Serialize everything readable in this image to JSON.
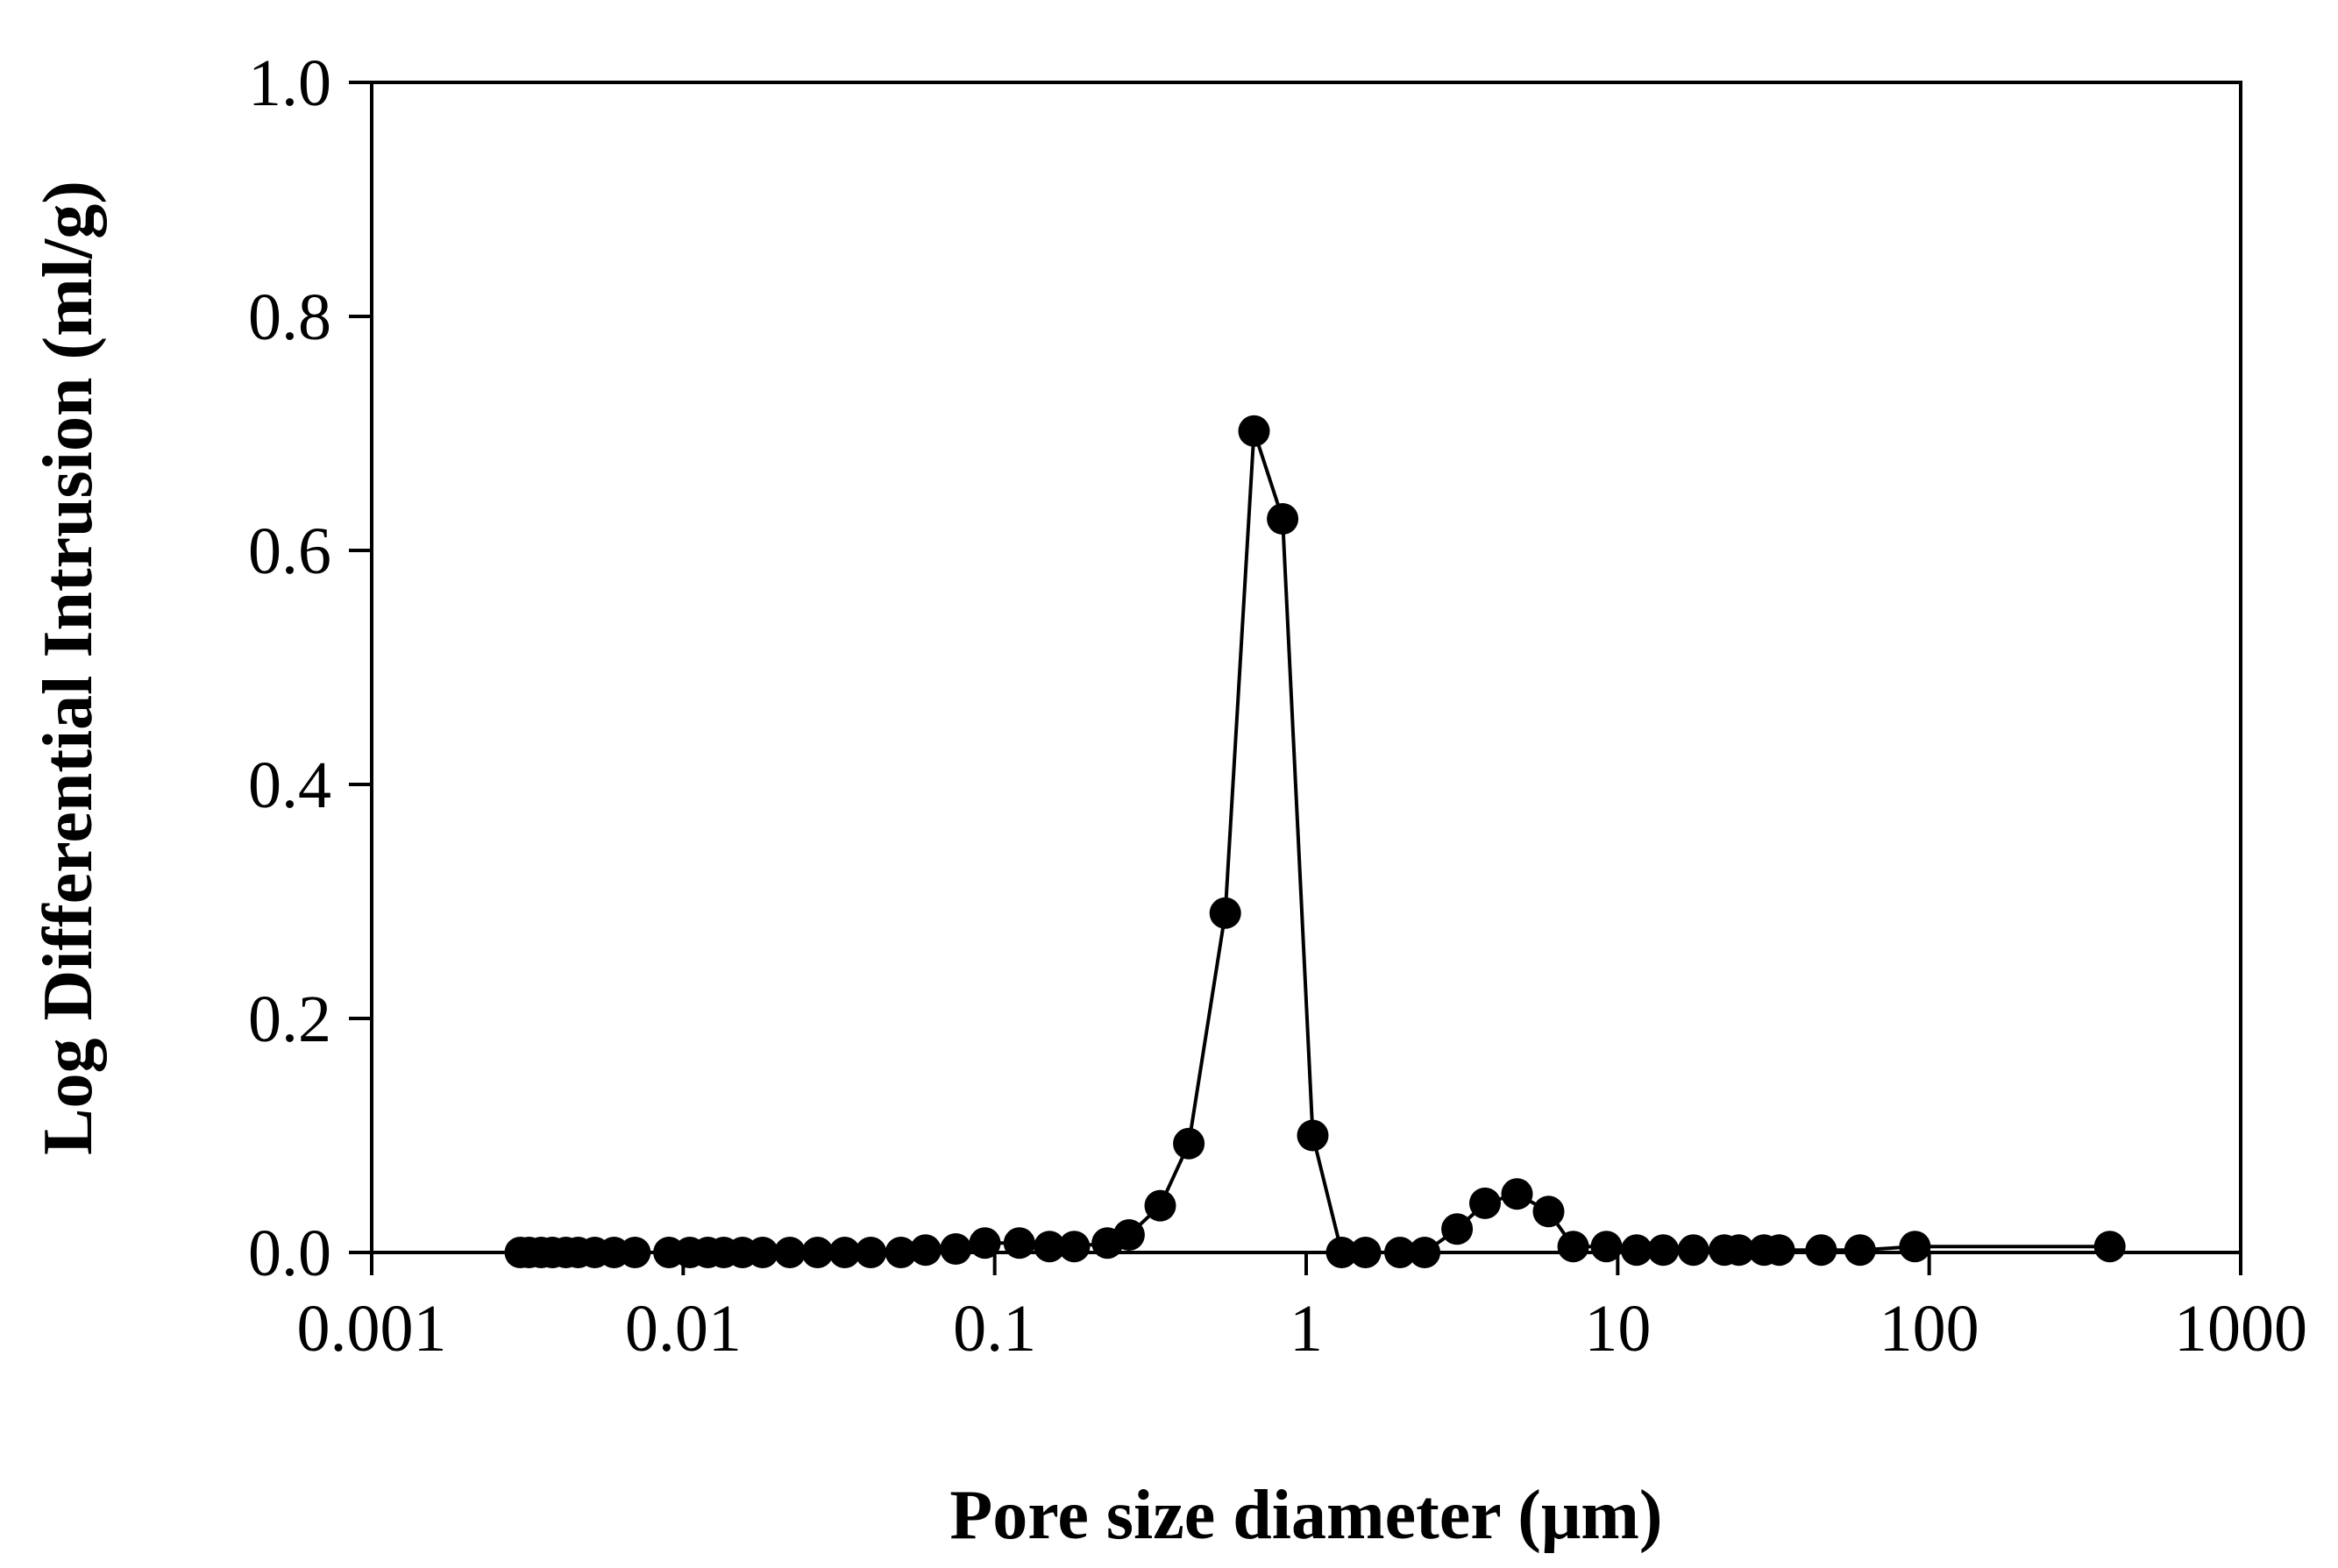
{
  "chart_data": {
    "type": "scatter",
    "title": "",
    "xlabel": "Pore size diameter (μm)",
    "ylabel": "Log Differential Intrusion (ml/g)",
    "x_scale": "log",
    "xlim": [
      0.001,
      1000
    ],
    "ylim": [
      0,
      1.0
    ],
    "x_ticks": [
      0.001,
      0.01,
      0.1,
      1,
      10,
      100,
      1000
    ],
    "x_tick_labels": [
      "0.001",
      "0.01",
      "0.1",
      "1",
      "10",
      "100",
      "1000"
    ],
    "y_ticks": [
      0,
      0.2,
      0.4,
      0.6,
      0.8,
      1.0
    ],
    "y_tick_labels": [
      "0.0",
      "0.2",
      "0.4",
      "0.6",
      "0.8",
      "1.0"
    ],
    "grid": false,
    "legend": "none",
    "colors": {
      "series": "#000000",
      "axis": "#000000"
    },
    "series": [
      {
        "marker": "filled-circle",
        "line": true,
        "x": [
          0.003,
          0.0032,
          0.0035,
          0.0038,
          0.0042,
          0.0046,
          0.0052,
          0.006,
          0.007,
          0.009,
          0.0105,
          0.012,
          0.0135,
          0.0155,
          0.018,
          0.022,
          0.027,
          0.033,
          0.04,
          0.05,
          0.06,
          0.075,
          0.093,
          0.12,
          0.15,
          0.18,
          0.23,
          0.27,
          0.34,
          0.42,
          0.55,
          0.68,
          0.84,
          1.05,
          1.3,
          1.55,
          2.0,
          2.4,
          3.05,
          3.75,
          4.75,
          6.0,
          7.2,
          9.2,
          11.5,
          14.0,
          17.5,
          22.0,
          24.5,
          29.5,
          33.0,
          45.0,
          60.0,
          90.0,
          380.0
        ],
        "y": [
          0.0,
          0.0,
          0.0,
          0.0,
          0.0,
          0.0,
          0.0,
          0.0,
          0.0,
          0.0,
          0.0,
          0.0,
          0.0,
          0.0,
          0.0,
          0.0,
          0.0,
          0.0,
          0.0,
          0.0,
          0.002,
          0.003,
          0.008,
          0.008,
          0.005,
          0.005,
          0.008,
          0.015,
          0.04,
          0.093,
          0.29,
          0.702,
          0.627,
          0.1,
          0.0,
          0.0,
          0.0,
          0.0,
          0.02,
          0.042,
          0.05,
          0.035,
          0.005,
          0.005,
          0.002,
          0.002,
          0.002,
          0.002,
          0.002,
          0.002,
          0.002,
          0.002,
          0.002,
          0.005,
          0.005
        ]
      }
    ]
  }
}
